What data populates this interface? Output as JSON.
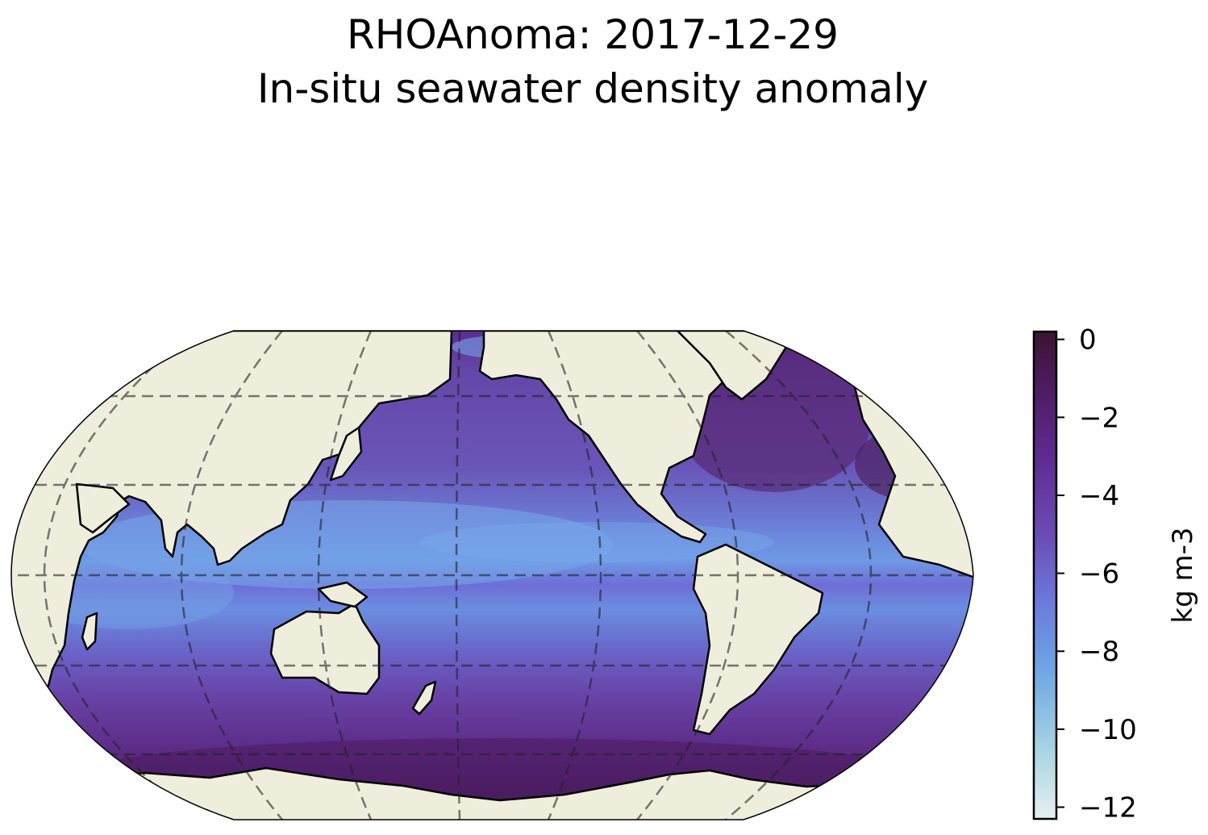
{
  "title": "RHOAnoma: 2017-12-29",
  "subtitle": "In-situ seawater density anomaly",
  "map": {
    "projection": "robinson",
    "central_longitude": "-150",
    "ocean_colors": [
      "#e0ecee",
      "#9ccbe0",
      "#6a9ee6",
      "#6b72d8",
      "#6a4ab0",
      "#5c2a8e",
      "#4e1e62",
      "#3a1530"
    ],
    "land_color": "#efeedc",
    "coastline_color": "#000000",
    "gridline_color": "#333333",
    "gridline_style": "dashed"
  },
  "colorbar": {
    "label": "kg m-3",
    "range": [
      -12.3,
      0.2
    ],
    "ticks": [
      {
        "value": 0,
        "label": "0"
      },
      {
        "value": -2,
        "label": "−2"
      },
      {
        "value": -4,
        "label": "−4"
      },
      {
        "value": -6,
        "label": "−6"
      },
      {
        "value": -8,
        "label": "−8"
      },
      {
        "value": -10,
        "label": "−10"
      },
      {
        "value": -12,
        "label": "−12"
      }
    ]
  }
}
